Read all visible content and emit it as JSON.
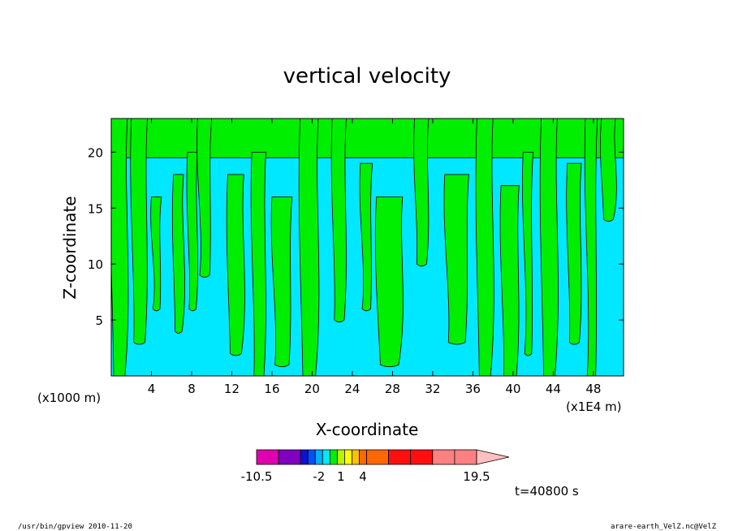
{
  "chart_data": {
    "type": "heatmap",
    "title": "vertical velocity",
    "xlabel": "X-coordinate",
    "ylabel": "Z-coordinate",
    "x_unit_left": "(x1000 m)",
    "x_unit_right": "(x1E4 m)",
    "xlim": [
      0,
      51
    ],
    "ylim": [
      0,
      23
    ],
    "x_ticks": [
      4,
      8,
      12,
      16,
      20,
      24,
      28,
      32,
      36,
      40,
      44,
      48
    ],
    "y_ticks": [
      5,
      10,
      15,
      20
    ],
    "field_classes": {
      "negative": "#00e8ff",
      "positive": "#00ee00"
    },
    "green_columns": [
      {
        "x0": 0.0,
        "x1": 1.6,
        "top": 23,
        "bottom": 0
      },
      {
        "x0": 2.0,
        "x1": 3.6,
        "top": 23,
        "bottom": 3
      },
      {
        "x0": 4.0,
        "x1": 5.0,
        "top": 16,
        "bottom": 6
      },
      {
        "x0": 6.2,
        "x1": 7.2,
        "top": 18,
        "bottom": 4
      },
      {
        "x0": 7.6,
        "x1": 8.6,
        "top": 20,
        "bottom": 6
      },
      {
        "x0": 8.6,
        "x1": 10.0,
        "top": 23,
        "bottom": 9
      },
      {
        "x0": 11.6,
        "x1": 13.2,
        "top": 18,
        "bottom": 2
      },
      {
        "x0": 14.0,
        "x1": 15.4,
        "top": 20,
        "bottom": 0
      },
      {
        "x0": 16.0,
        "x1": 18.0,
        "top": 16,
        "bottom": 1
      },
      {
        "x0": 18.8,
        "x1": 20.6,
        "top": 23,
        "bottom": 0
      },
      {
        "x0": 22.0,
        "x1": 23.4,
        "top": 23,
        "bottom": 5
      },
      {
        "x0": 24.8,
        "x1": 26.0,
        "top": 19,
        "bottom": 6
      },
      {
        "x0": 26.4,
        "x1": 29.0,
        "top": 16,
        "bottom": 1
      },
      {
        "x0": 30.2,
        "x1": 31.6,
        "top": 23,
        "bottom": 10
      },
      {
        "x0": 33.2,
        "x1": 35.6,
        "top": 18,
        "bottom": 3
      },
      {
        "x0": 36.4,
        "x1": 38.0,
        "top": 23,
        "bottom": 0
      },
      {
        "x0": 38.8,
        "x1": 40.6,
        "top": 17,
        "bottom": 0
      },
      {
        "x0": 41.0,
        "x1": 42.0,
        "top": 20,
        "bottom": 2
      },
      {
        "x0": 42.8,
        "x1": 44.4,
        "top": 23,
        "bottom": 0
      },
      {
        "x0": 45.4,
        "x1": 46.8,
        "top": 19,
        "bottom": 3
      },
      {
        "x0": 47.2,
        "x1": 48.4,
        "top": 23,
        "bottom": 0
      },
      {
        "x0": 48.8,
        "x1": 50.2,
        "top": 23,
        "bottom": 14
      }
    ],
    "green_top_band": {
      "z0": 19.5,
      "z1": 23
    },
    "colorbar": {
      "min_label": "-10.5",
      "labels": [
        "-10.5",
        "-2",
        "1",
        "4",
        "19.5"
      ],
      "label_values": [
        -10.5,
        -2,
        1,
        4,
        19.5
      ],
      "levels": [
        -10.5,
        -7.5,
        -4.5,
        -3.5,
        -2.5,
        -1.5,
        -0.5,
        0.5,
        1.5,
        2.5,
        3.5,
        4.5,
        7.5,
        10.5,
        13.5,
        16.5,
        19.5
      ],
      "colors": [
        "#e000b0",
        "#8000c0",
        "#1010d0",
        "#0050ff",
        "#00b0ff",
        "#00e8ff",
        "#00ee00",
        "#c0f000",
        "#ffff00",
        "#ffc000",
        "#ff6800",
        "#ff6800",
        "#ff1010",
        "#ff1010",
        "#ff8080",
        "#ff8080"
      ],
      "extend_color": "#ffc0c0"
    },
    "time_label": "t=40800 s"
  },
  "footer": {
    "left": "/usr/bin/gpview  2010-11-20",
    "right": "arare-earth_VelZ.nc@VelZ"
  }
}
